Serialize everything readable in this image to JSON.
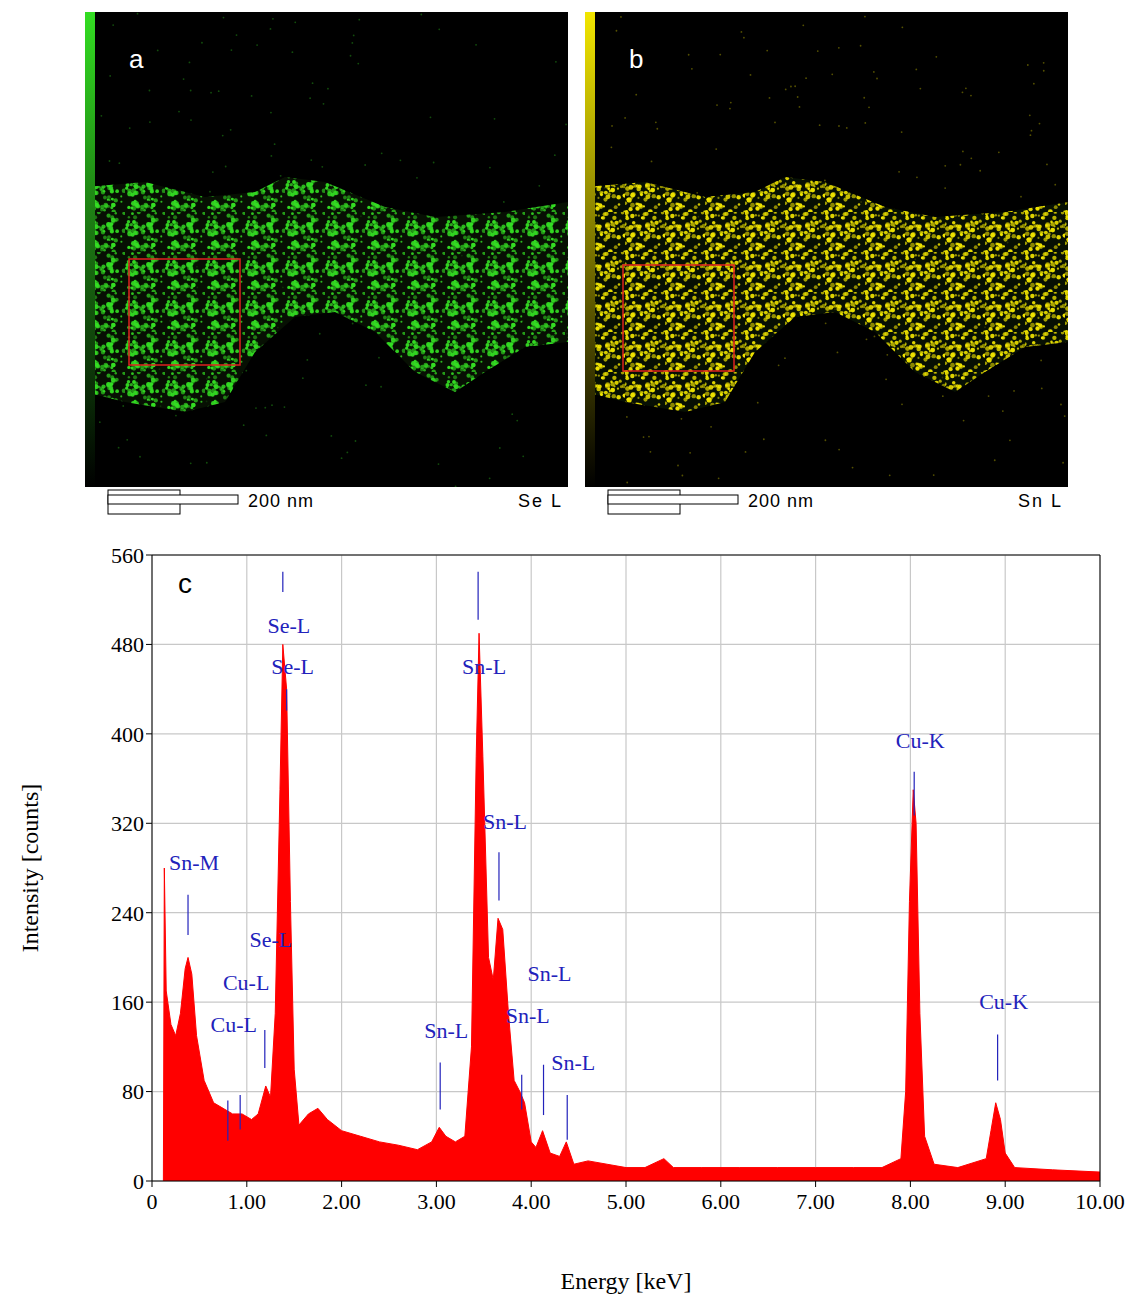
{
  "maps": [
    {
      "letter": "a",
      "element": "Se L",
      "scale_bar": "200 nm",
      "color": "#33dd22"
    },
    {
      "letter": "b",
      "element": "Sn L",
      "scale_bar": "200 nm",
      "color": "#f2e600"
    }
  ],
  "chart_data": {
    "type": "area",
    "panel": "c",
    "x_label": "Energy [keV]",
    "y_label": "Intensity [counts]",
    "color": "#ff0000",
    "grid": true,
    "xlim": [
      0,
      10
    ],
    "ylim": [
      0,
      560
    ],
    "xticks": [
      0,
      {
        "value": 1,
        "label": "1.00"
      },
      {
        "value": 2,
        "label": "2.00"
      },
      {
        "value": 3,
        "label": "3.00"
      },
      {
        "value": 4,
        "label": "4.00"
      },
      {
        "value": 5,
        "label": "5.00"
      },
      {
        "value": 6,
        "label": "6.00"
      },
      {
        "value": 7,
        "label": "7.00"
      },
      {
        "value": 8,
        "label": "8.00"
      },
      {
        "value": 9,
        "label": "9.00"
      },
      {
        "value": 10,
        "label": "10.00"
      }
    ],
    "yticks": [
      0,
      80,
      160,
      240,
      320,
      400,
      480,
      560
    ],
    "x": [
      0.12,
      0.13,
      0.15,
      0.2,
      0.25,
      0.3,
      0.35,
      0.38,
      0.42,
      0.47,
      0.55,
      0.65,
      0.75,
      0.85,
      0.95,
      1.05,
      1.12,
      1.2,
      1.25,
      1.3,
      1.35,
      1.38,
      1.42,
      1.46,
      1.5,
      1.55,
      1.65,
      1.75,
      1.85,
      2.0,
      2.2,
      2.4,
      2.6,
      2.8,
      2.95,
      3.03,
      3.1,
      3.2,
      3.3,
      3.37,
      3.42,
      3.45,
      3.49,
      3.55,
      3.6,
      3.65,
      3.7,
      3.76,
      3.82,
      3.88,
      3.93,
      4.0,
      4.05,
      4.12,
      4.2,
      4.3,
      4.37,
      4.45,
      4.6,
      4.8,
      5.0,
      5.2,
      5.4,
      5.5,
      5.8,
      6.2,
      6.6,
      7.0,
      7.4,
      7.7,
      7.9,
      7.95,
      7.99,
      8.03,
      8.06,
      8.1,
      8.15,
      8.25,
      8.5,
      8.8,
      8.85,
      8.9,
      8.95,
      9.0,
      9.1,
      9.5,
      10.0
    ],
    "values": [
      0,
      280,
      170,
      140,
      130,
      150,
      190,
      200,
      185,
      130,
      90,
      70,
      65,
      60,
      60,
      55,
      60,
      85,
      75,
      150,
      350,
      480,
      440,
      250,
      100,
      50,
      60,
      65,
      55,
      45,
      40,
      35,
      32,
      28,
      35,
      48,
      40,
      35,
      40,
      120,
      380,
      490,
      380,
      200,
      180,
      235,
      225,
      150,
      90,
      80,
      70,
      35,
      30,
      45,
      25,
      22,
      35,
      15,
      18,
      15,
      12,
      12,
      20,
      12,
      12,
      12,
      12,
      12,
      12,
      12,
      20,
      80,
      250,
      350,
      320,
      150,
      40,
      15,
      12,
      20,
      45,
      70,
      55,
      25,
      12,
      10,
      8
    ],
    "annotation_color": "#2222bb",
    "annotations": [
      {
        "text": "Sn-M",
        "x": 0.38,
        "y": 285,
        "mark_range": [
          220,
          256
        ]
      },
      {
        "text": "Cu-L",
        "x": 0.8,
        "y": 140,
        "mark_range": [
          36,
          72
        ]
      },
      {
        "text": "Cu-L",
        "x": 0.93,
        "y": 178,
        "mark_range": [
          46,
          77
        ]
      },
      {
        "text": "Se-L",
        "x": 1.19,
        "y": 216,
        "mark_range": [
          101,
          135
        ]
      },
      {
        "text": "Se-L",
        "x": 1.38,
        "y": 497,
        "mark_range": [
          527,
          545
        ]
      },
      {
        "text": "Se-L",
        "x": 1.42,
        "y": 460,
        "mark_range": [
          421,
          440
        ]
      },
      {
        "text": "Sn-L",
        "x": 3.04,
        "y": 135,
        "mark_range": [
          64,
          106
        ]
      },
      {
        "text": "Sn-L",
        "x": 3.44,
        "y": 460,
        "mark_range": [
          502,
          545
        ]
      },
      {
        "text": "Sn-L",
        "x": 3.66,
        "y": 322,
        "mark_range": [
          251,
          294
        ]
      },
      {
        "text": "Sn-L",
        "x": 3.9,
        "y": 148,
        "mark_range": [
          64,
          95
        ]
      },
      {
        "text": "Sn-L",
        "x": 4.13,
        "y": 186,
        "mark_range": [
          59,
          104
        ]
      },
      {
        "text": "Sn-L",
        "x": 4.38,
        "y": 106,
        "mark_range": [
          37,
          77
        ]
      },
      {
        "text": "Cu-K",
        "x": 8.04,
        "y": 394,
        "mark_range": [
          327,
          366
        ]
      },
      {
        "text": "Cu-K",
        "x": 8.92,
        "y": 161,
        "mark_range": [
          90,
          131
        ]
      }
    ]
  }
}
